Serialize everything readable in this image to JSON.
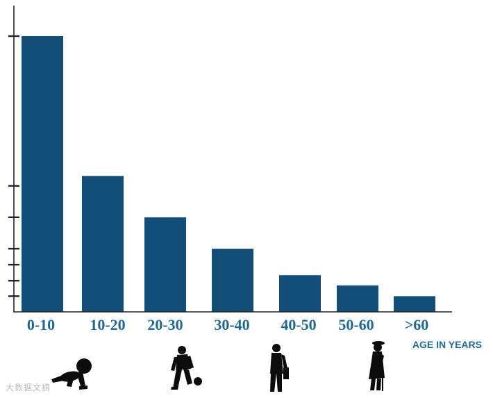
{
  "chart_data": {
    "type": "bar",
    "categories": [
      "0-10",
      "10-20",
      "20-30",
      "30-40",
      "40-50",
      "50-60",
      ">60"
    ],
    "values": [
      100,
      49.3,
      34.3,
      22.9,
      13.3,
      9.6,
      5.7
    ],
    "title": "",
    "xlabel": "AGE IN YEARS",
    "ylabel": "",
    "ylim": [
      0,
      100
    ],
    "y_ticks": [
      5.7,
      11.3,
      17.1,
      22.9,
      34.3,
      45.7,
      100
    ],
    "y_tick_labels_shown": false,
    "grid": false,
    "legend": "none",
    "bar_color": "#124e78",
    "label_color": "#1f6796"
  },
  "illustrations": [
    "crawling-baby-icon",
    "football-player-icon",
    "walking-businessman-icon",
    "elderly-woman-with-cane-icon"
  ],
  "watermark": "大数据文摘"
}
